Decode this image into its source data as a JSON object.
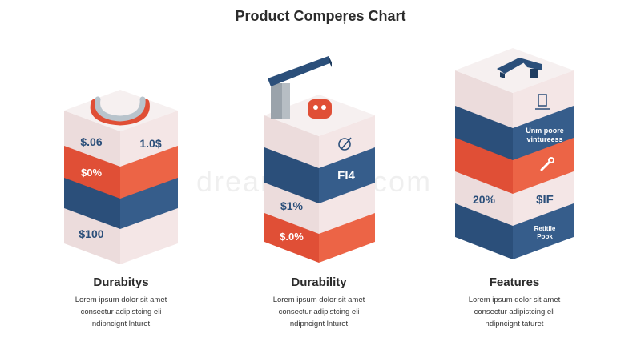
{
  "title": "Product Compeŗes Chart",
  "watermark": "dreamstime.com",
  "products": [
    {
      "name": "Durabitys",
      "desc": [
        "Lorem ipsum dolor sit amet",
        "consectur adipistcing eli",
        "ndipncignt lnturet"
      ],
      "labels": {
        "price_top": "$.06",
        "price_right": "1.0$",
        "pct": "$0%",
        "bottom": "$100"
      }
    },
    {
      "name": "Durability",
      "desc": [
        "Lorem ipsum dolor sit amet",
        "consectur adipistcing eli",
        "ndipncignt lnturet"
      ],
      "labels": {
        "right": "FI4",
        "pct1": "$1%",
        "pct2": "$.0%"
      }
    },
    {
      "name": "Features",
      "desc": [
        "Lorem ipsum dolor sit amet",
        "consectur adipistcing eli",
        "ndipncignt taturet"
      ],
      "labels": {
        "blue_line1": "Unm poore",
        "blue_line2": "vintureess",
        "pct": "20%",
        "sif": "$IF",
        "b1": "Retitile",
        "b2": "Pook"
      }
    }
  ],
  "colors": {
    "pink_left": "#ecdcdc",
    "pink_right": "#f5e8e8",
    "pink_top": "#f8f0f0",
    "red_left": "#e04f36",
    "red_right": "#ec6446",
    "blue_left": "#2b4f7a",
    "blue_right": "#365d8b",
    "gray_top": "#eeeeee"
  }
}
